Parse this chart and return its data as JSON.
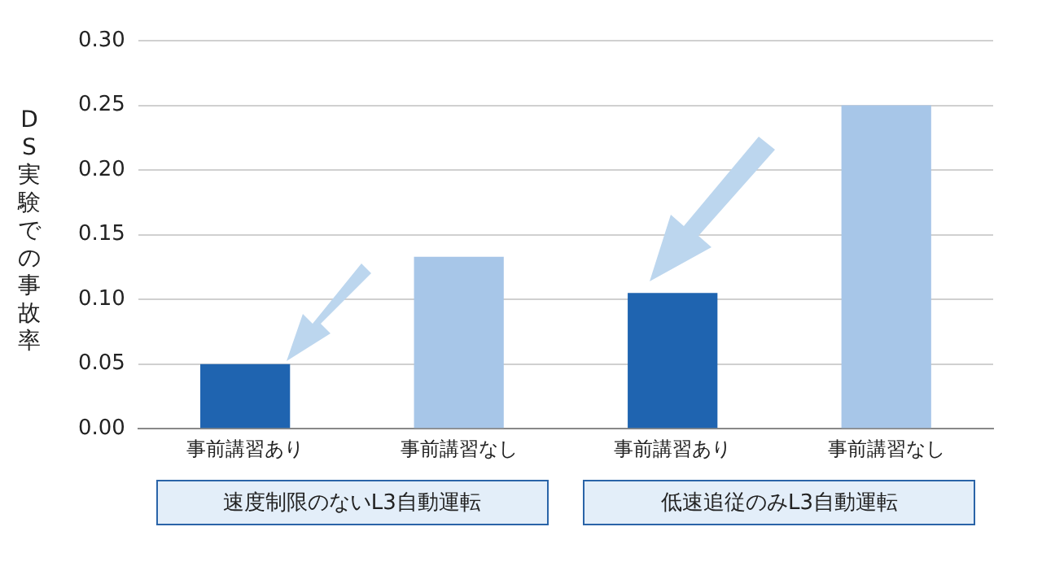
{
  "chart_data": {
    "type": "bar",
    "ylabel": "DS実験での事故率",
    "categories": [
      "事前講習あり",
      "事前講習なし",
      "事前講習あり",
      "事前講習なし"
    ],
    "values": [
      0.05,
      0.133,
      0.105,
      0.25
    ],
    "colors": [
      "#1f64b0",
      "#a7c6e8",
      "#1f64b0",
      "#a7c6e8"
    ],
    "ylim": [
      0,
      0.3
    ],
    "yticks": [
      {
        "value": 0,
        "label": "0.00"
      },
      {
        "value": 0.05,
        "label": "0.05"
      },
      {
        "value": 0.1,
        "label": "0.10"
      },
      {
        "value": 0.15,
        "label": "0.15"
      },
      {
        "value": 0.2,
        "label": "0.20"
      },
      {
        "value": 0.25,
        "label": "0.25"
      },
      {
        "value": 0.3,
        "label": "0.30"
      }
    ],
    "grid": "y",
    "annotations": [
      "速度制限のないL3自動運転",
      "低速追従のみL3自動運転"
    ]
  }
}
